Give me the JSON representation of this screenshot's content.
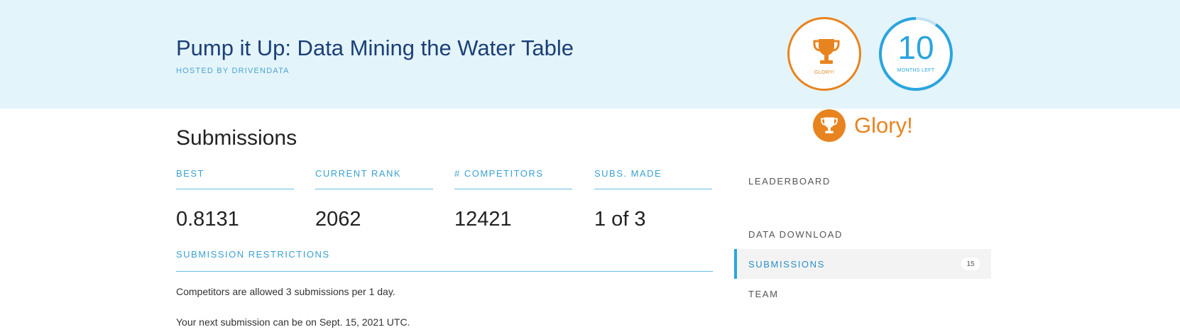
{
  "header": {
    "title": "Pump it Up: Data Mining the Water Table",
    "hosted_prefix": "HOSTED BY",
    "host": "DRIVENDATA",
    "prize_badge": {
      "caption": "GLORY!",
      "icon": "trophy-icon",
      "color": "#e8841f"
    },
    "time_badge": {
      "number": "10",
      "caption": "MONTHS LEFT",
      "color": "#2aa5df"
    }
  },
  "prize_label": {
    "icon": "trophy-icon",
    "text": "Glory!"
  },
  "submissions": {
    "title": "Submissions",
    "stats": [
      {
        "label": "BEST",
        "value": "0.8131"
      },
      {
        "label": "CURRENT RANK",
        "value": "2062"
      },
      {
        "label": "# COMPETITORS",
        "value": "12421"
      },
      {
        "label": "SUBS. MADE",
        "value": "1 of 3"
      }
    ],
    "restrictions_heading": "SUBMISSION RESTRICTIONS",
    "restriction_text": "Competitors are allowed 3 submissions per 1 day.",
    "next_submission_text": "Your next submission can be on Sept. 15, 2021 UTC."
  },
  "nav": {
    "items": [
      {
        "label": "LEADERBOARD"
      },
      {
        "label": "DATA DOWNLOAD"
      },
      {
        "label": "SUBMISSIONS",
        "count": "15",
        "active": true
      },
      {
        "label": "TEAM"
      }
    ]
  }
}
